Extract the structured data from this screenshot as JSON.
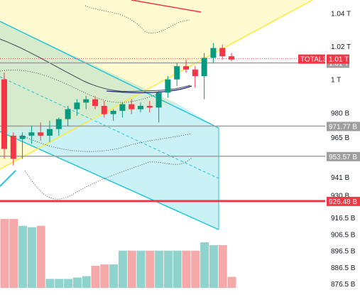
{
  "chart_data": {
    "type": "candlestick",
    "series_label": "TOTAL3",
    "last_price_label": "1.01 T",
    "y_axis": {
      "ticks": [
        "1.04 T",
        "1.02 T",
        "1.01 T",
        "1 T",
        "980 B",
        "971.77 B",
        "965 B",
        "953.57 B",
        "941 B",
        "930 B",
        "926.48 B",
        "916.5 B",
        "906.5 B",
        "896.5 B",
        "886.5 B",
        "876.5 B"
      ],
      "range_billions": [
        874,
        1048
      ]
    },
    "horizontal_levels": [
      {
        "value": 1010,
        "label": "1.01 T",
        "color": "#9e9e9e"
      },
      {
        "value": 971.77,
        "label": "971.77 B",
        "color": "#9e9e9e"
      },
      {
        "value": 953.57,
        "label": "953.57 B",
        "color": "#9e9e9e"
      },
      {
        "value": 926.48,
        "label": "926.48 B",
        "color": "#f23645"
      }
    ],
    "candles": [
      {
        "o": 1000,
        "h": 1004,
        "l": 952,
        "c": 958
      },
      {
        "o": 966,
        "h": 968,
        "l": 948,
        "c": 952
      },
      {
        "o": 964,
        "h": 968,
        "l": 952,
        "c": 966
      },
      {
        "o": 966,
        "h": 972,
        "l": 961,
        "c": 968
      },
      {
        "o": 968,
        "h": 974,
        "l": 963,
        "c": 966
      },
      {
        "o": 966,
        "h": 975,
        "l": 962,
        "c": 970
      },
      {
        "o": 970,
        "h": 977,
        "l": 966,
        "c": 976
      },
      {
        "o": 976,
        "h": 984,
        "l": 972,
        "c": 982
      },
      {
        "o": 982,
        "h": 988,
        "l": 978,
        "c": 986
      },
      {
        "o": 986,
        "h": 990,
        "l": 982,
        "c": 988
      },
      {
        "o": 988,
        "h": 990,
        "l": 982,
        "c": 984
      },
      {
        "o": 984,
        "h": 987,
        "l": 977,
        "c": 979
      },
      {
        "o": 979,
        "h": 982,
        "l": 975,
        "c": 981
      },
      {
        "o": 981,
        "h": 986,
        "l": 977,
        "c": 985
      },
      {
        "o": 985,
        "h": 988,
        "l": 979,
        "c": 982
      },
      {
        "o": 982,
        "h": 986,
        "l": 980,
        "c": 984
      },
      {
        "o": 984,
        "h": 987,
        "l": 980,
        "c": 983
      },
      {
        "o": 983,
        "h": 993,
        "l": 974,
        "c": 992
      },
      {
        "o": 992,
        "h": 1002,
        "l": 989,
        "c": 1000
      },
      {
        "o": 1000,
        "h": 1010,
        "l": 996,
        "c": 1008
      },
      {
        "o": 1008,
        "h": 1012,
        "l": 1004,
        "c": 1006
      },
      {
        "o": 1006,
        "h": 1008,
        "l": 995,
        "c": 1002
      },
      {
        "o": 1002,
        "h": 1016,
        "l": 988,
        "c": 1013
      },
      {
        "o": 1013,
        "h": 1022,
        "l": 1010,
        "c": 1019
      },
      {
        "o": 1019,
        "h": 1021,
        "l": 1012,
        "c": 1014
      },
      {
        "o": 1014,
        "h": 1016,
        "l": 1011,
        "c": 1012
      }
    ],
    "volume_relative": [
      1.0,
      1.0,
      0.9,
      0.88,
      0.9,
      0.13,
      0.13,
      0.13,
      0.15,
      0.17,
      0.32,
      0.34,
      0.34,
      0.54,
      0.54,
      0.54,
      0.54,
      0.54,
      0.54,
      0.54,
      0.54,
      0.54,
      0.66,
      0.62,
      0.62,
      0.16
    ]
  }
}
